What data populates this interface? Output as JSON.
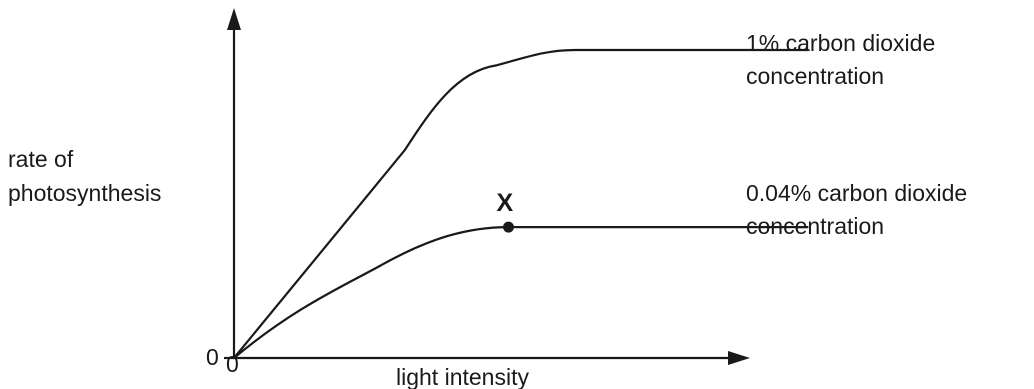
{
  "chart_data": {
    "type": "line",
    "title": "",
    "xlabel": "light intensity",
    "ylabel": [
      "rate of",
      "photosynthesis"
    ],
    "x_origin_label": "0",
    "y_origin_label": "0",
    "grid": false,
    "axis_values_shown": false,
    "series": [
      {
        "name": [
          "1% carbon dioxide",
          "concentration"
        ],
        "description_of_shape": "rises steeply and roughly linearly, curves over, then plateaus at a high level",
        "x": [
          0,
          1.4,
          2.15,
          2.8,
          4.7
        ],
        "y": [
          0,
          2.7,
          3.8,
          4.0,
          4.0
        ]
      },
      {
        "name": [
          "0.04% carbon dioxide",
          "concentration"
        ],
        "description_of_shape": "rises more gradually, levels off at point X, then stays flat at a lower level",
        "x": [
          0,
          1.2,
          2.25,
          4.7
        ],
        "y": [
          0,
          1.2,
          1.7,
          1.7
        ]
      }
    ],
    "annotations": [
      {
        "text": "X",
        "series_index": 1,
        "x": 2.25,
        "y": 1.7,
        "marker": "dot"
      }
    ]
  }
}
